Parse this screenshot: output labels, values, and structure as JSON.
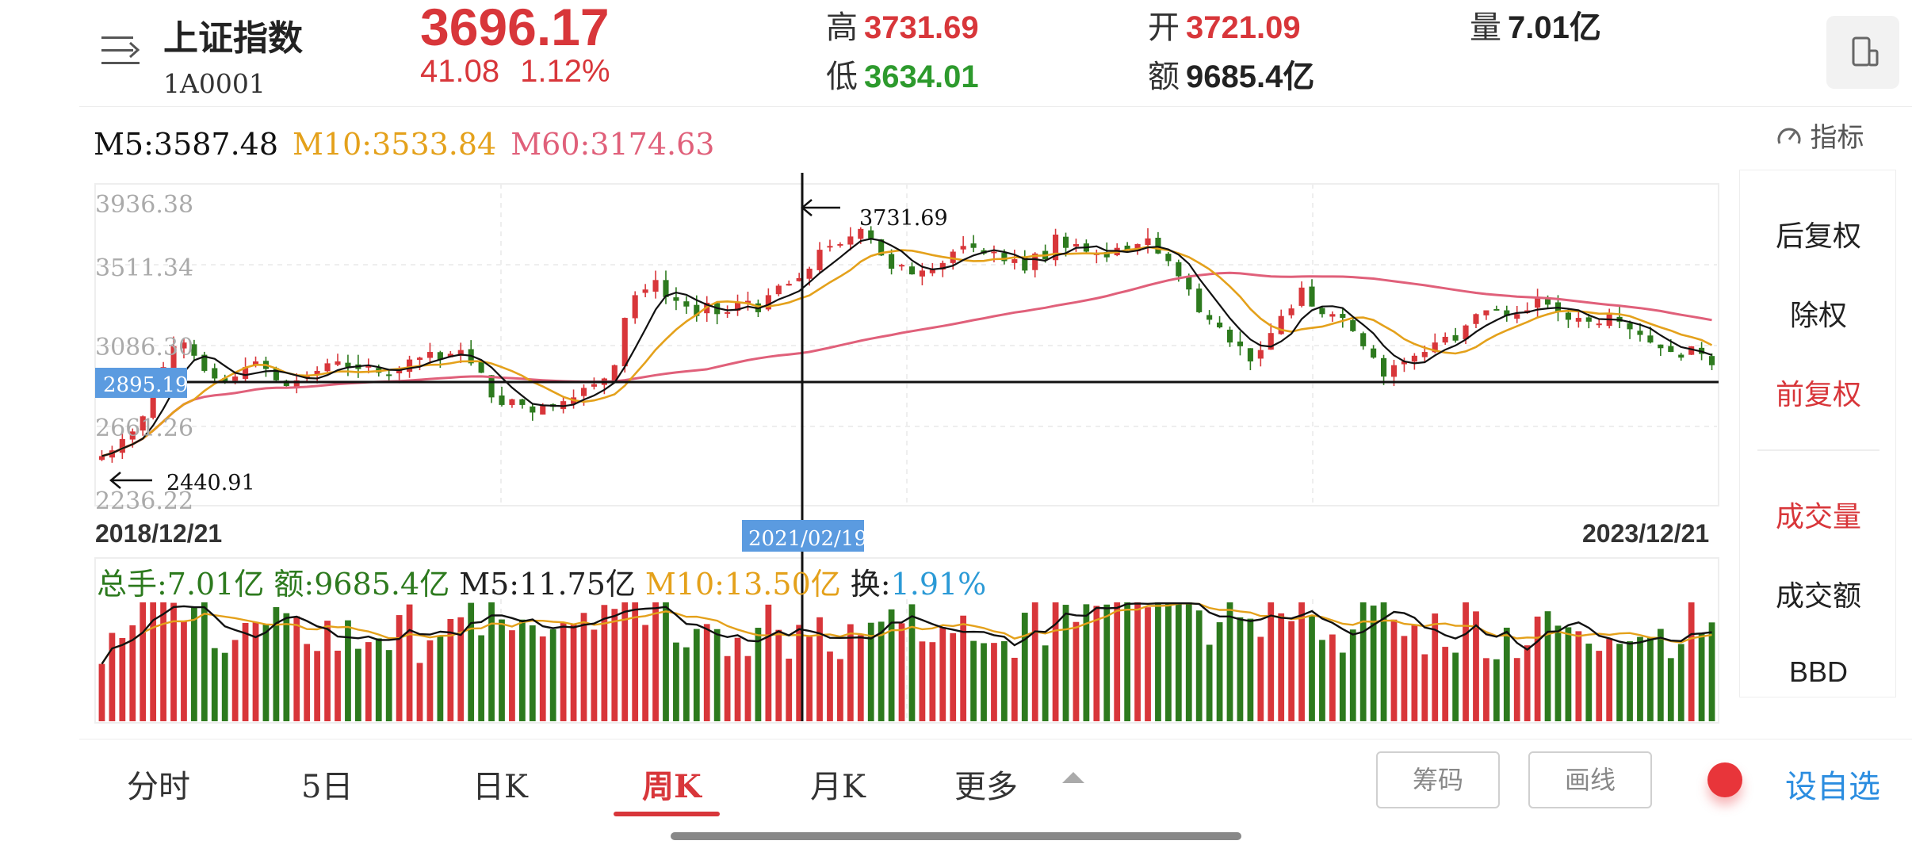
{
  "header": {
    "title": "上证指数",
    "code": "1A0001",
    "price": "3696.17",
    "change_abs": "41.08",
    "change_pct": "1.12%",
    "high_label": "高",
    "high_value": "3731.69",
    "low_label": "低",
    "low_value": "3634.01",
    "open_label": "开",
    "open_value": "3721.09",
    "amount_label": "额",
    "amount_value": "9685.4亿",
    "volume_label": "量",
    "volume_value": "7.01亿",
    "menu_icon": "menu-lines-icon",
    "device_icon": "phone-rotate-icon"
  },
  "ma_row": {
    "ma5": "M5:3587.48",
    "ma10": "M10:3533.84",
    "ma60": "M60:3174.63",
    "indicator_label": "指标",
    "indicator_icon": "gauge-icon"
  },
  "colors": {
    "up": "#d8363a",
    "down": "#2d7a1e",
    "ma5": "#111111",
    "ma10": "#e4a11b",
    "ma60": "#e0607a",
    "cursor_label_bg": "#5b9be0"
  },
  "chart_data": {
    "type": "candlestick",
    "period": "weekly",
    "x_start": "2018/12/21",
    "x_end": "2023/12/21",
    "y_ticks": [
      "3936.38",
      "3511.34",
      "3086.30",
      "2661.26",
      "2236.22"
    ],
    "ylim": [
      2236.22,
      3936.38
    ],
    "max_marker": "3731.69",
    "min_marker": "2440.91",
    "crosshair": {
      "date": "2021/02/19",
      "value": "2895.19"
    },
    "ma_values": {
      "M5": 3587.48,
      "M10": 3533.84,
      "M60": 3174.63
    },
    "close_approx": [
      2490,
      2520,
      2580,
      2620,
      2700,
      2840,
      2960,
      3070,
      3090,
      3020,
      2940,
      2900,
      2880,
      2910,
      2960,
      2990,
      2950,
      2890,
      2860,
      2890,
      2920,
      2940,
      2980,
      2990,
      2960,
      2950,
      2970,
      2930,
      2920,
      2950,
      3000,
      3010,
      3040,
      3000,
      3030,
      3050,
      2980,
      2930,
      2800,
      2760,
      2790,
      2760,
      2720,
      2760,
      2750,
      2780,
      2800,
      2850,
      2870,
      2900,
      2970,
      3220,
      3340,
      3370,
      3420,
      3330,
      3310,
      3280,
      3230,
      3300,
      3240,
      3250,
      3300,
      3310,
      3250,
      3340,
      3390,
      3400,
      3430,
      3480,
      3580,
      3600,
      3610,
      3650,
      3690,
      3640,
      3550,
      3480,
      3500,
      3450,
      3470,
      3480,
      3510,
      3570,
      3600,
      3590,
      3560,
      3570,
      3520,
      3530,
      3470,
      3560,
      3530,
      3660,
      3590,
      3610,
      3570,
      3560,
      3540,
      3590,
      3580,
      3610,
      3640,
      3560,
      3520,
      3440,
      3370,
      3250,
      3210,
      3170,
      3090,
      3070,
      2990,
      3050,
      3140,
      3230,
      3270,
      3380,
      3280,
      3240,
      3240,
      3220,
      3150,
      3070,
      3010,
      2910,
      2970,
      2990,
      3020,
      3040,
      3090,
      3120,
      3100,
      3180,
      3240,
      3260,
      3260,
      3230,
      3240,
      3260,
      3330,
      3290,
      3250,
      3210,
      3220,
      3200,
      3190,
      3240,
      3200,
      3160,
      3130,
      3090,
      3060,
      3040,
      3010,
      3070,
      3030,
      2970
    ],
    "volume_info": {
      "total": "总手:7.01亿",
      "amount": "额:9685.4亿",
      "m5": "M5:11.75亿",
      "m10": "M10:13.50亿",
      "turnover_label": "换:",
      "turnover_value": "1.91%"
    }
  },
  "right_panel": {
    "items": [
      "后复权",
      "除权",
      "前复权",
      "成交量",
      "成交额",
      "BBD"
    ],
    "active": [
      "前复权",
      "成交量"
    ]
  },
  "tabs": [
    "分时",
    "5日",
    "日K",
    "周K",
    "月K",
    "更多"
  ],
  "active_tab": "周K",
  "buttons": {
    "chips": "筹码",
    "draw": "画线",
    "add_watch": "设自选"
  }
}
